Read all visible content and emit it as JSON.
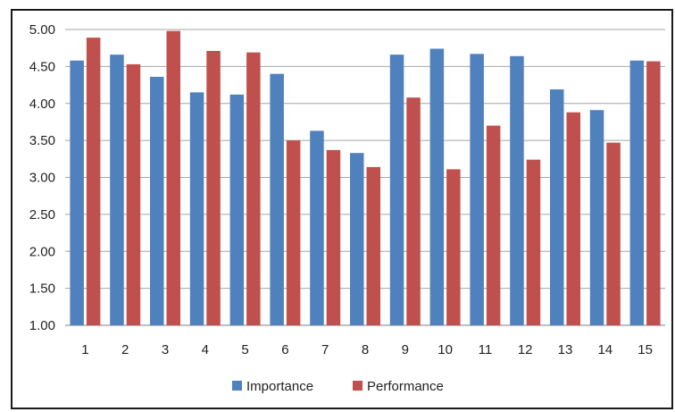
{
  "chart_data": {
    "type": "bar",
    "categories": [
      "1",
      "2",
      "3",
      "4",
      "5",
      "6",
      "7",
      "8",
      "9",
      "10",
      "11",
      "12",
      "13",
      "14",
      "15"
    ],
    "series": [
      {
        "name": "Importance",
        "color": "#4f81bd",
        "values": [
          4.58,
          4.66,
          4.36,
          4.15,
          4.12,
          4.4,
          3.63,
          3.33,
          4.66,
          4.74,
          4.67,
          4.64,
          4.19,
          3.91,
          4.58
        ]
      },
      {
        "name": "Performance",
        "color": "#c0504d",
        "values": [
          4.89,
          4.53,
          4.98,
          4.71,
          4.69,
          3.5,
          3.37,
          3.14,
          4.08,
          3.11,
          3.7,
          3.24,
          3.88,
          3.47,
          4.57
        ]
      }
    ],
    "y_ticks": [
      "1.00",
      "1.50",
      "2.00",
      "2.50",
      "3.00",
      "3.50",
      "4.00",
      "4.50",
      "5.00"
    ],
    "ylim": [
      1.0,
      5.0
    ],
    "grid": true,
    "legend_position": "bottom",
    "title": "",
    "xlabel": "",
    "ylabel": ""
  }
}
